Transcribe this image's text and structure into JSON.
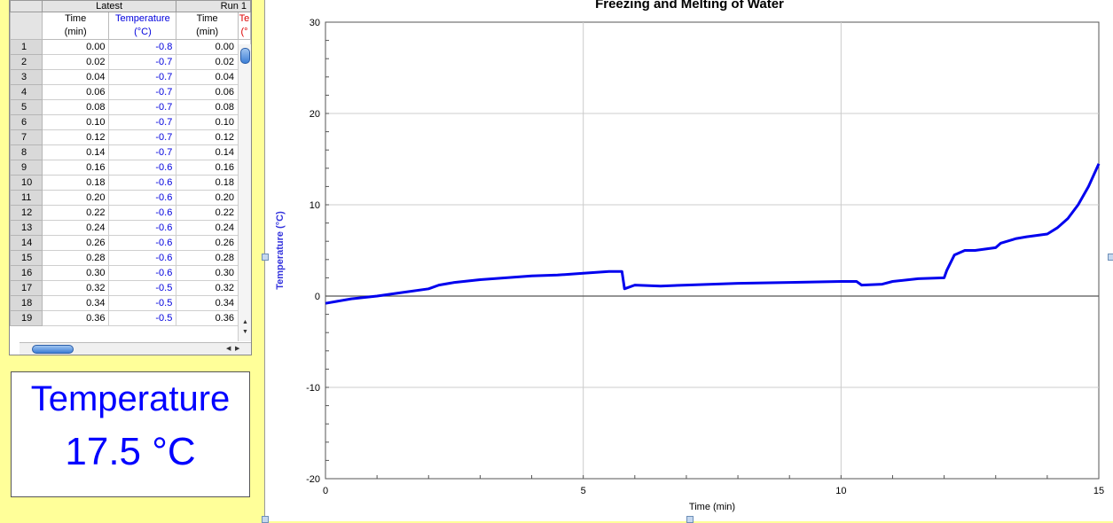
{
  "table": {
    "groups": [
      "Latest",
      "Run 1"
    ],
    "headers": {
      "time_a": [
        "Time",
        "(min)"
      ],
      "temp_a": [
        "Temperature",
        "(°C)"
      ],
      "time_b": [
        "Time",
        "(min)"
      ],
      "temp_b": [
        "Te",
        "(°"
      ]
    },
    "rows": [
      [
        "1",
        "0.00",
        "-0.8",
        "0.00"
      ],
      [
        "2",
        "0.02",
        "-0.7",
        "0.02"
      ],
      [
        "3",
        "0.04",
        "-0.7",
        "0.04"
      ],
      [
        "4",
        "0.06",
        "-0.7",
        "0.06"
      ],
      [
        "5",
        "0.08",
        "-0.7",
        "0.08"
      ],
      [
        "6",
        "0.10",
        "-0.7",
        "0.10"
      ],
      [
        "7",
        "0.12",
        "-0.7",
        "0.12"
      ],
      [
        "8",
        "0.14",
        "-0.7",
        "0.14"
      ],
      [
        "9",
        "0.16",
        "-0.6",
        "0.16"
      ],
      [
        "10",
        "0.18",
        "-0.6",
        "0.18"
      ],
      [
        "11",
        "0.20",
        "-0.6",
        "0.20"
      ],
      [
        "12",
        "0.22",
        "-0.6",
        "0.22"
      ],
      [
        "13",
        "0.24",
        "-0.6",
        "0.24"
      ],
      [
        "14",
        "0.26",
        "-0.6",
        "0.26"
      ],
      [
        "15",
        "0.28",
        "-0.6",
        "0.28"
      ],
      [
        "16",
        "0.30",
        "-0.6",
        "0.30"
      ],
      [
        "17",
        "0.32",
        "-0.5",
        "0.32"
      ],
      [
        "18",
        "0.34",
        "-0.5",
        "0.34"
      ],
      [
        "19",
        "0.36",
        "-0.5",
        "0.36"
      ]
    ]
  },
  "meter": {
    "label": "Temperature",
    "value": "17.5 °C"
  },
  "graph": {
    "title": "Freezing and Melting of Water"
  },
  "colors": {
    "series": "#0000ee",
    "panel_bg": "#ffff99",
    "ylabel": "#3333dd"
  },
  "chart_data": {
    "type": "line",
    "title": "Freezing and Melting of Water",
    "xlabel": "Time (min)",
    "ylabel": "Temperature (°C)",
    "xlim": [
      0,
      15
    ],
    "ylim": [
      -20,
      30
    ],
    "xticks": [
      0,
      5,
      10,
      15
    ],
    "yticks": [
      -20,
      -10,
      0,
      10,
      20,
      30
    ],
    "grid": true,
    "series": [
      {
        "x": [
          0,
          0.5,
          1.0,
          1.5,
          2.0,
          2.2,
          2.5,
          3.0,
          3.5,
          4.0,
          4.5,
          5.0,
          5.5,
          5.7,
          5.75,
          5.8,
          6.0,
          6.5,
          7.0,
          7.5,
          8.0,
          9.0,
          10.0,
          10.3,
          10.4,
          10.8,
          11.0,
          11.5,
          12.0,
          12.05,
          12.2,
          12.4,
          12.6,
          13.0,
          13.1,
          13.4,
          13.6,
          14.0,
          14.2,
          14.4,
          14.6,
          14.8,
          15.0
        ],
        "y": [
          -0.8,
          -0.3,
          0.0,
          0.4,
          0.8,
          1.2,
          1.5,
          1.8,
          2.0,
          2.2,
          2.3,
          2.5,
          2.7,
          2.7,
          2.7,
          0.8,
          1.2,
          1.1,
          1.2,
          1.3,
          1.4,
          1.5,
          1.6,
          1.6,
          1.2,
          1.3,
          1.6,
          1.9,
          2.0,
          2.8,
          4.5,
          5.0,
          5.0,
          5.3,
          5.8,
          6.3,
          6.5,
          6.8,
          7.5,
          8.5,
          10.0,
          12.0,
          14.5
        ]
      }
    ]
  }
}
